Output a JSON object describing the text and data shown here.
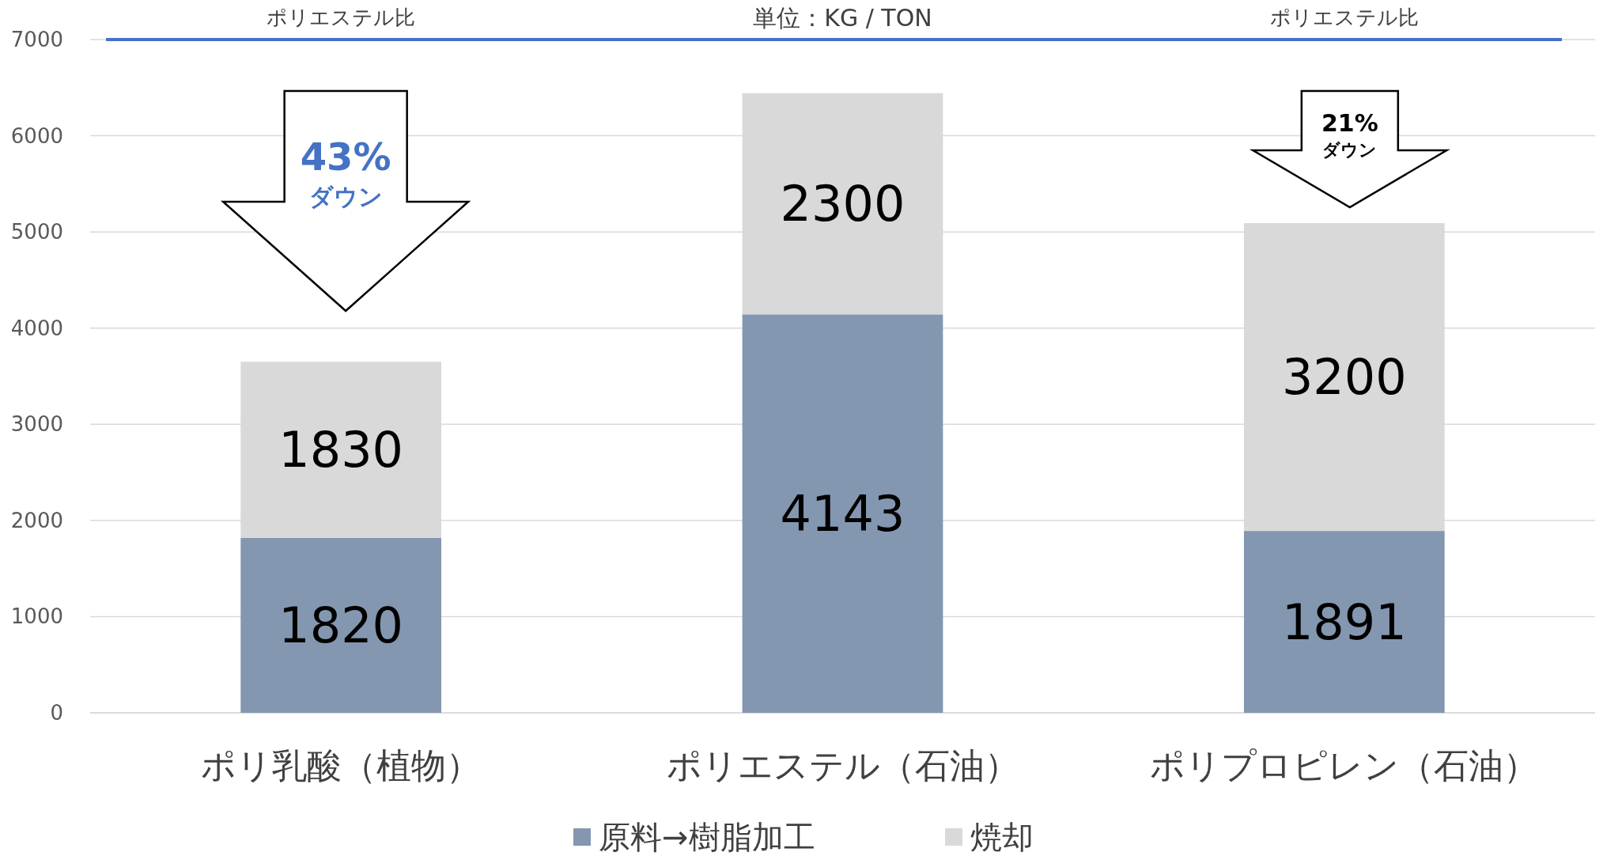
{
  "chart_data": {
    "type": "bar",
    "stacked": true,
    "categories": [
      "ポリ乳酸（植物）",
      "ポリエステル（石油）",
      "ポリプロピレン（石油）"
    ],
    "series": [
      {
        "name": "原料→樹脂加工",
        "color": "#8497b0",
        "values": [
          1820,
          4143,
          1891
        ]
      },
      {
        "name": "焼却",
        "color": "#d9d9d9",
        "values": [
          1830,
          2300,
          3200
        ]
      }
    ],
    "ylim": [
      0,
      7000
    ],
    "yticks": [
      0,
      1000,
      2000,
      3000,
      4000,
      5000,
      6000,
      7000
    ],
    "grid": "y",
    "legend": "bottom",
    "data_labels": true,
    "ref_lines": [
      {
        "axis": "y",
        "value": 7000,
        "color": "#4472c4"
      }
    ],
    "annotations": [
      "ポリエステル比",
      "単位：KG / TON",
      "ポリエステル比",
      "43%",
      "ダウン",
      "21%",
      "ダウン"
    ]
  }
}
